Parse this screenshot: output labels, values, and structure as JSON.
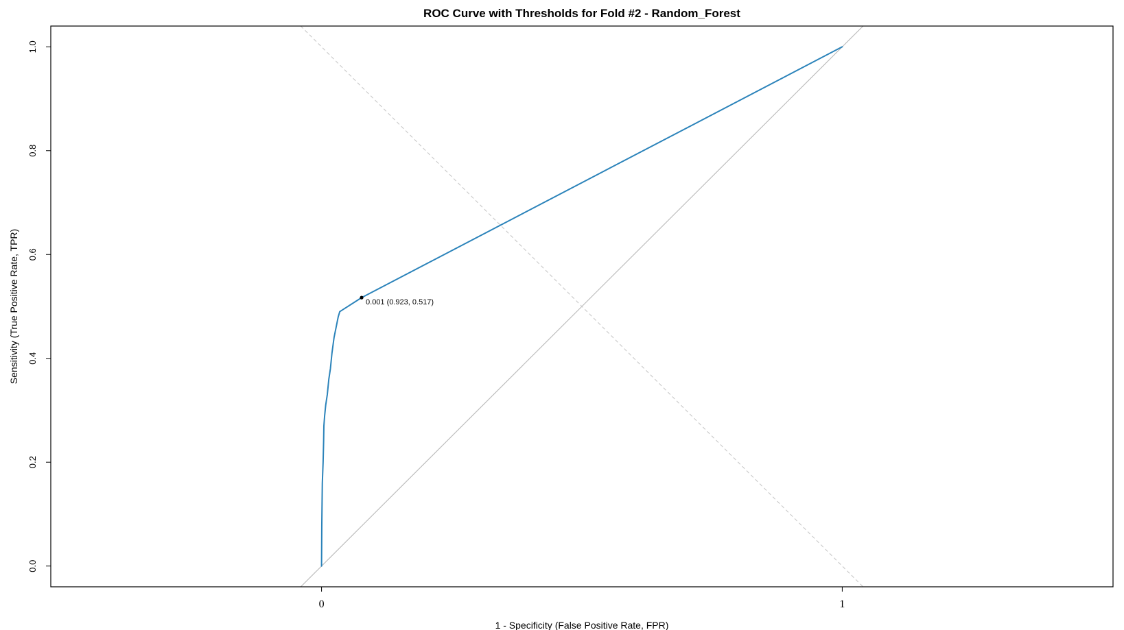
{
  "chart_data": {
    "type": "line",
    "title": "ROC Curve with Thresholds for Fold #2 - Random_Forest",
    "xlabel": "1 - Specificity (False Positive Rate, FPR)",
    "ylabel": "Sensitivity (True Positive Rate, TPR)",
    "x_axis": {
      "reversed": true,
      "xlim": [
        1.52,
        -0.52
      ],
      "ticks": [
        {
          "value": 1,
          "label": "0"
        },
        {
          "value": 0,
          "label": "1"
        }
      ]
    },
    "y_axis": {
      "ylim": [
        -0.04,
        1.04
      ],
      "ticks": [
        {
          "value": 0.0,
          "label": "0.0"
        },
        {
          "value": 0.2,
          "label": "0.2"
        },
        {
          "value": 0.4,
          "label": "0.4"
        },
        {
          "value": 0.6,
          "label": "0.6"
        },
        {
          "value": 0.8,
          "label": "0.8"
        },
        {
          "value": 1.0,
          "label": "1.0"
        }
      ]
    },
    "grid": false,
    "legend": "none",
    "reference_lines": [
      {
        "name": "chance-diagonal",
        "points": [
          [
            1.04,
            -0.04
          ],
          [
            -0.04,
            1.04
          ]
        ],
        "color": "#bdbdbd",
        "dashed": false
      },
      {
        "name": "youden-guide",
        "points": [
          [
            1.04,
            1.04
          ],
          [
            -0.04,
            -0.04
          ]
        ],
        "color": "#cccccc",
        "dashed": true
      }
    ],
    "series": [
      {
        "color": "#2b83ba",
        "x_field": "specificity",
        "y_field": "sensitivity",
        "points": [
          {
            "specificity": 1.0,
            "sensitivity": 0.0
          },
          {
            "specificity": 0.9995,
            "sensitivity": 0.08
          },
          {
            "specificity": 0.9985,
            "sensitivity": 0.16
          },
          {
            "specificity": 0.997,
            "sensitivity": 0.2
          },
          {
            "specificity": 0.996,
            "sensitivity": 0.24
          },
          {
            "specificity": 0.9955,
            "sensitivity": 0.27
          },
          {
            "specificity": 0.994,
            "sensitivity": 0.29
          },
          {
            "specificity": 0.992,
            "sensitivity": 0.31
          },
          {
            "specificity": 0.989,
            "sensitivity": 0.33
          },
          {
            "specificity": 0.986,
            "sensitivity": 0.36
          },
          {
            "specificity": 0.983,
            "sensitivity": 0.38
          },
          {
            "specificity": 0.98,
            "sensitivity": 0.41
          },
          {
            "specificity": 0.976,
            "sensitivity": 0.44
          },
          {
            "specificity": 0.972,
            "sensitivity": 0.46
          },
          {
            "specificity": 0.968,
            "sensitivity": 0.48
          },
          {
            "specificity": 0.965,
            "sensitivity": 0.49
          },
          {
            "specificity": 0.923,
            "sensitivity": 0.517
          },
          {
            "specificity": 0.0,
            "sensitivity": 1.0
          }
        ]
      }
    ],
    "annotations": [
      {
        "text": "0.001 (0.923, 0.517)",
        "specificity": 0.923,
        "sensitivity": 0.517,
        "threshold": 0.001
      }
    ]
  }
}
